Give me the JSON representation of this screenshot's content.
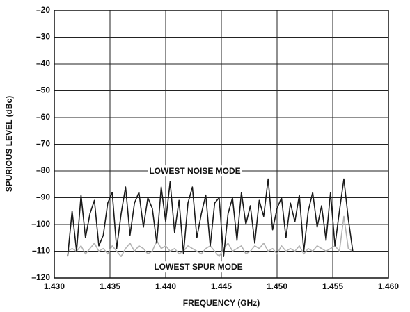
{
  "chart_data": {
    "type": "line",
    "xlabel": "FREQUENCY (GHz)",
    "ylabel": "SPURIOUS LEVEL (dBc)",
    "x": [
      1.4312,
      1.4316,
      1.432,
      1.4324,
      1.4328,
      1.4332,
      1.4336,
      1.434,
      1.4344,
      1.4348,
      1.4352,
      1.4356,
      1.436,
      1.4364,
      1.4368,
      1.4372,
      1.4376,
      1.438,
      1.4384,
      1.4388,
      1.4392,
      1.4396,
      1.44,
      1.4404,
      1.4408,
      1.4412,
      1.4416,
      1.442,
      1.4424,
      1.4428,
      1.4432,
      1.4436,
      1.444,
      1.4444,
      1.4448,
      1.4452,
      1.4456,
      1.446,
      1.4464,
      1.4468,
      1.4472,
      1.4476,
      1.448,
      1.4484,
      1.4488,
      1.4492,
      1.4496,
      1.45,
      1.4504,
      1.4508,
      1.4512,
      1.4516,
      1.452,
      1.4524,
      1.4528,
      1.4532,
      1.4536,
      1.454,
      1.4544,
      1.4548,
      1.4552,
      1.4556,
      1.456,
      1.4564,
      1.4568
    ],
    "series": [
      {
        "name": "LOWEST NOISE MODE",
        "color": "#1a1a1a",
        "values": [
          -112,
          -95,
          -110,
          -89,
          -105,
          -96,
          -91,
          -108,
          -104,
          -92,
          -88,
          -109,
          -96,
          -86,
          -104,
          -92,
          -88,
          -101,
          -90,
          -94,
          -107,
          -86,
          -99,
          -84,
          -103,
          -91,
          -111,
          -92,
          -86,
          -105,
          -96,
          -89,
          -108,
          -92,
          -90,
          -112,
          -96,
          -90,
          -106,
          -88,
          -100,
          -93,
          -107,
          -91,
          -97,
          -83,
          -102,
          -94,
          -90,
          -105,
          -92,
          -99,
          -89,
          -110,
          -95,
          -88,
          -101,
          -93,
          -106,
          -88,
          -108,
          -95,
          -83,
          -98,
          -110
        ]
      },
      {
        "name": "LOWEST SPUR MODE",
        "color": "#b3b3b3",
        "values": [
          -110,
          -109,
          -110,
          -108,
          -111,
          -109,
          -107,
          -110,
          -109,
          -111,
          -108,
          -110,
          -112,
          -109,
          -107,
          -110,
          -108,
          -109,
          -111,
          -110,
          -106,
          -109,
          -108,
          -110,
          -109,
          -111,
          -110,
          -108,
          -109,
          -110,
          -111,
          -109,
          -108,
          -110,
          -112,
          -109,
          -107,
          -110,
          -109,
          -108,
          -111,
          -110,
          -108,
          -109,
          -107,
          -110,
          -109,
          -111,
          -108,
          -110,
          -109,
          -110,
          -108,
          -111,
          -109,
          -110,
          -108,
          -109,
          -110,
          -109,
          -108,
          -110,
          -97,
          -109,
          -110
        ]
      }
    ],
    "xlim": [
      1.43,
      1.46
    ],
    "xticks": [
      {
        "value": 1.43,
        "label": "1.430"
      },
      {
        "value": 1.435,
        "label": "1.435"
      },
      {
        "value": 1.44,
        "label": "1.440"
      },
      {
        "value": 1.445,
        "label": "1.445"
      },
      {
        "value": 1.45,
        "label": "1.450"
      },
      {
        "value": 1.455,
        "label": "1.455"
      },
      {
        "value": 1.46,
        "label": "1.460"
      }
    ],
    "ylim": [
      -120,
      -20
    ],
    "yticks": [
      {
        "value": -120,
        "label": "–120"
      },
      {
        "value": -110,
        "label": "–110"
      },
      {
        "value": -100,
        "label": "–100"
      },
      {
        "value": -90,
        "label": "–90"
      },
      {
        "value": -80,
        "label": "–80"
      },
      {
        "value": -70,
        "label": "–70"
      },
      {
        "value": -60,
        "label": "–60"
      },
      {
        "value": -50,
        "label": "–50"
      },
      {
        "value": -40,
        "label": "–40"
      },
      {
        "value": -30,
        "label": "–30"
      },
      {
        "value": -20,
        "label": "–20"
      }
    ],
    "grid": true
  }
}
